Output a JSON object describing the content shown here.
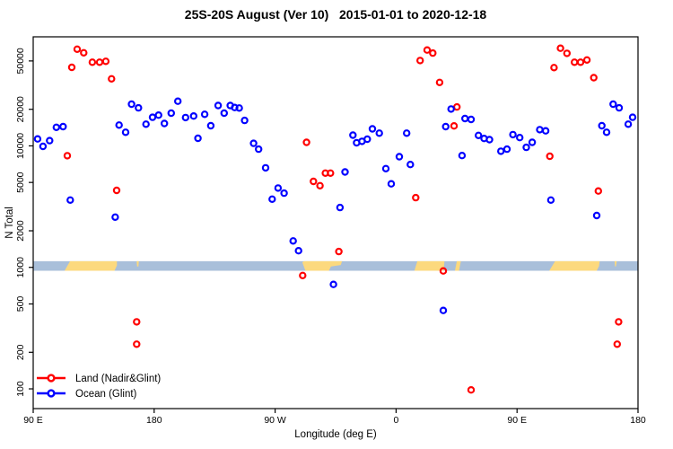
{
  "chart_data": {
    "type": "scatter",
    "title": "25S-20S August (Ver 10)   2015-01-01 to 2020-12-18",
    "xlabel": "Longitude (deg E)",
    "ylabel": "N Total",
    "x_axis_note": "longitude axis runs 90E eastward around the globe to 180 (plotted span 90..540 deg E continuous)",
    "xlim": [
      90,
      540
    ],
    "ylim": [
      68.8,
      79000
    ],
    "y_scale": "log",
    "x_ticks": [
      {
        "value": 90,
        "label": "90 E"
      },
      {
        "value": 180,
        "label": "180"
      },
      {
        "value": 270,
        "label": "90 W"
      },
      {
        "value": 360,
        "label": "0"
      },
      {
        "value": 450,
        "label": "90 E"
      },
      {
        "value": 540,
        "label": "180"
      }
    ],
    "y_ticks": [
      {
        "value": 100,
        "label": "100"
      },
      {
        "value": 200,
        "label": "200"
      },
      {
        "value": 500,
        "label": "500"
      },
      {
        "value": 1000,
        "label": "1000"
      },
      {
        "value": 2000,
        "label": "2000"
      },
      {
        "value": 5000,
        "label": "5000"
      },
      {
        "value": 10000,
        "label": "10000"
      },
      {
        "value": 20000,
        "label": "20000"
      },
      {
        "value": 50000,
        "label": "50000"
      }
    ],
    "legend": {
      "position": "bottom-left",
      "items": [
        {
          "label": "Land (Nadir&Glint)",
          "color": "#ff0000"
        },
        {
          "label": "Ocean (Glint)",
          "color": "#0000ff"
        }
      ]
    },
    "map_strip": {
      "description": "latitude-band world map drawn as horizontal strip at N~1000",
      "n_top": 1124,
      "n_bottom": 938,
      "ocean_color": "#a9bfda",
      "land_color": "#fcd97e",
      "land_polygons": [
        {
          "name": "australia-west-copy",
          "pts": [
            [
              113.4,
              1
            ],
            [
              117.4,
              0
            ],
            [
              152.3,
              0
            ],
            [
              152.3,
              0.45
            ],
            [
              150.5,
              1
            ]
          ]
        },
        {
          "name": "new-caledonia-west-copy",
          "pts": [
            [
              167,
              0
            ],
            [
              168.6,
              0
            ],
            [
              168.3,
              0.55
            ],
            [
              167.3,
              0.55
            ]
          ]
        },
        {
          "name": "south-america",
          "pts": [
            [
              290.2,
              0.12
            ],
            [
              291.5,
              0
            ],
            [
              319.8,
              0
            ],
            [
              318.8,
              0.4
            ],
            [
              311.5,
              0.55
            ],
            [
              310,
              1
            ],
            [
              292.6,
              1
            ]
          ]
        },
        {
          "name": "africa",
          "pts": [
            [
              373.6,
              1
            ],
            [
              375.8,
              0
            ],
            [
              396,
              0
            ],
            [
              395.4,
              1
            ]
          ]
        },
        {
          "name": "madagascar",
          "pts": [
            [
              403.8,
              1
            ],
            [
              405.2,
              0
            ],
            [
              408.2,
              0
            ],
            [
              406.8,
              1
            ]
          ]
        },
        {
          "name": "australia-east-copy",
          "pts": [
            [
              474,
              1
            ],
            [
              478.3,
              0
            ],
            [
              511.5,
              0
            ],
            [
              511,
              0.5
            ],
            [
              509.3,
              1
            ]
          ]
        },
        {
          "name": "new-caledonia-east-copy",
          "pts": [
            [
              522.6,
              0
            ],
            [
              524.2,
              0
            ],
            [
              523.6,
              0.55
            ],
            [
              522.9,
              0.55
            ]
          ]
        }
      ]
    },
    "marker": {
      "shape": "open-circle",
      "radius_px": 3.1,
      "stroke_px": 2.2
    },
    "series": [
      {
        "name": "Land (Nadir&Glint)",
        "color": "#ff0000",
        "points": [
          [
            118.7,
            44300
          ],
          [
            122.7,
            62500
          ],
          [
            127.6,
            58400
          ],
          [
            134,
            48800
          ],
          [
            139.4,
            48800
          ],
          [
            144,
            49600
          ],
          [
            148.3,
            35600
          ],
          [
            115.4,
            8300
          ],
          [
            152.1,
            4300
          ],
          [
            167,
            356
          ],
          [
            167,
            233
          ],
          [
            293.4,
            10700
          ],
          [
            298.5,
            5100
          ],
          [
            303.4,
            4700
          ],
          [
            307.4,
            5970
          ],
          [
            311.2,
            5970
          ],
          [
            317.4,
            1350
          ],
          [
            290.5,
            857
          ],
          [
            374.6,
            3750
          ],
          [
            377.9,
            50400
          ],
          [
            383.1,
            61500
          ],
          [
            387.3,
            58100
          ],
          [
            392.4,
            33300
          ],
          [
            403.1,
            14600
          ],
          [
            405.3,
            20900
          ],
          [
            395.1,
            934
          ],
          [
            415.8,
            98
          ],
          [
            477.5,
            44100
          ],
          [
            482.3,
            63600
          ],
          [
            487.1,
            57800
          ],
          [
            492.7,
            48800
          ],
          [
            497.3,
            48800
          ],
          [
            502,
            50900
          ],
          [
            507.1,
            36400
          ],
          [
            474.4,
            8220
          ],
          [
            510.5,
            4250
          ],
          [
            525.6,
            356
          ],
          [
            524.5,
            233
          ]
        ]
      },
      {
        "name": "Ocean (Glint)",
        "color": "#0000ff",
        "points": [
          [
            93.3,
            11400
          ],
          [
            97.3,
            9900
          ],
          [
            102.2,
            11050
          ],
          [
            107.2,
            14200
          ],
          [
            112.2,
            14400
          ],
          [
            117.6,
            3580
          ],
          [
            151,
            2590
          ],
          [
            153.9,
            14830
          ],
          [
            158.8,
            12940
          ],
          [
            163.2,
            22030
          ],
          [
            168.3,
            20560
          ],
          [
            173.9,
            15080
          ],
          [
            178.8,
            17180
          ],
          [
            183.3,
            17900
          ],
          [
            187.6,
            15300
          ],
          [
            192.7,
            18600
          ],
          [
            197.6,
            23300
          ],
          [
            203.4,
            17100
          ],
          [
            209.4,
            17600
          ],
          [
            212.6,
            11550
          ],
          [
            217.6,
            18200
          ],
          [
            222.1,
            14650
          ],
          [
            227.6,
            21500
          ],
          [
            232.1,
            18600
          ],
          [
            236.6,
            21500
          ],
          [
            239.9,
            20700
          ],
          [
            243.3,
            20500
          ],
          [
            247.3,
            16200
          ],
          [
            254,
            10500
          ],
          [
            257.7,
            9390
          ],
          [
            262.9,
            6600
          ],
          [
            267.8,
            3640
          ],
          [
            272.2,
            4500
          ],
          [
            276.7,
            4080
          ],
          [
            283.4,
            1650
          ],
          [
            287.4,
            1370
          ],
          [
            313.4,
            724
          ],
          [
            318.3,
            3110
          ],
          [
            322,
            6100
          ],
          [
            327.9,
            12250
          ],
          [
            330.6,
            10600
          ],
          [
            334.6,
            10900
          ],
          [
            338.6,
            11350
          ],
          [
            342.4,
            13800
          ],
          [
            347.5,
            12720
          ],
          [
            352.4,
            6500
          ],
          [
            356.4,
            4870
          ],
          [
            362.4,
            8140
          ],
          [
            367.9,
            12720
          ],
          [
            370.6,
            7020
          ],
          [
            395.1,
            442
          ],
          [
            396.9,
            14400
          ],
          [
            400.9,
            20100
          ],
          [
            409.1,
            8330
          ],
          [
            411.3,
            16800
          ],
          [
            415.8,
            16500
          ],
          [
            421.3,
            12200
          ],
          [
            425.5,
            11500
          ],
          [
            429.5,
            11250
          ],
          [
            438,
            9040
          ],
          [
            442.5,
            9390
          ],
          [
            446.9,
            12380
          ],
          [
            452,
            11700
          ],
          [
            456.9,
            9730
          ],
          [
            461.3,
            10700
          ],
          [
            466.9,
            13600
          ],
          [
            471.3,
            13300
          ],
          [
            475.2,
            3580
          ],
          [
            509.3,
            2670
          ],
          [
            513.1,
            14650
          ],
          [
            516.6,
            12940
          ],
          [
            521.5,
            22030
          ],
          [
            526,
            20560
          ],
          [
            532.7,
            15080
          ],
          [
            536,
            17180
          ]
        ]
      }
    ]
  }
}
